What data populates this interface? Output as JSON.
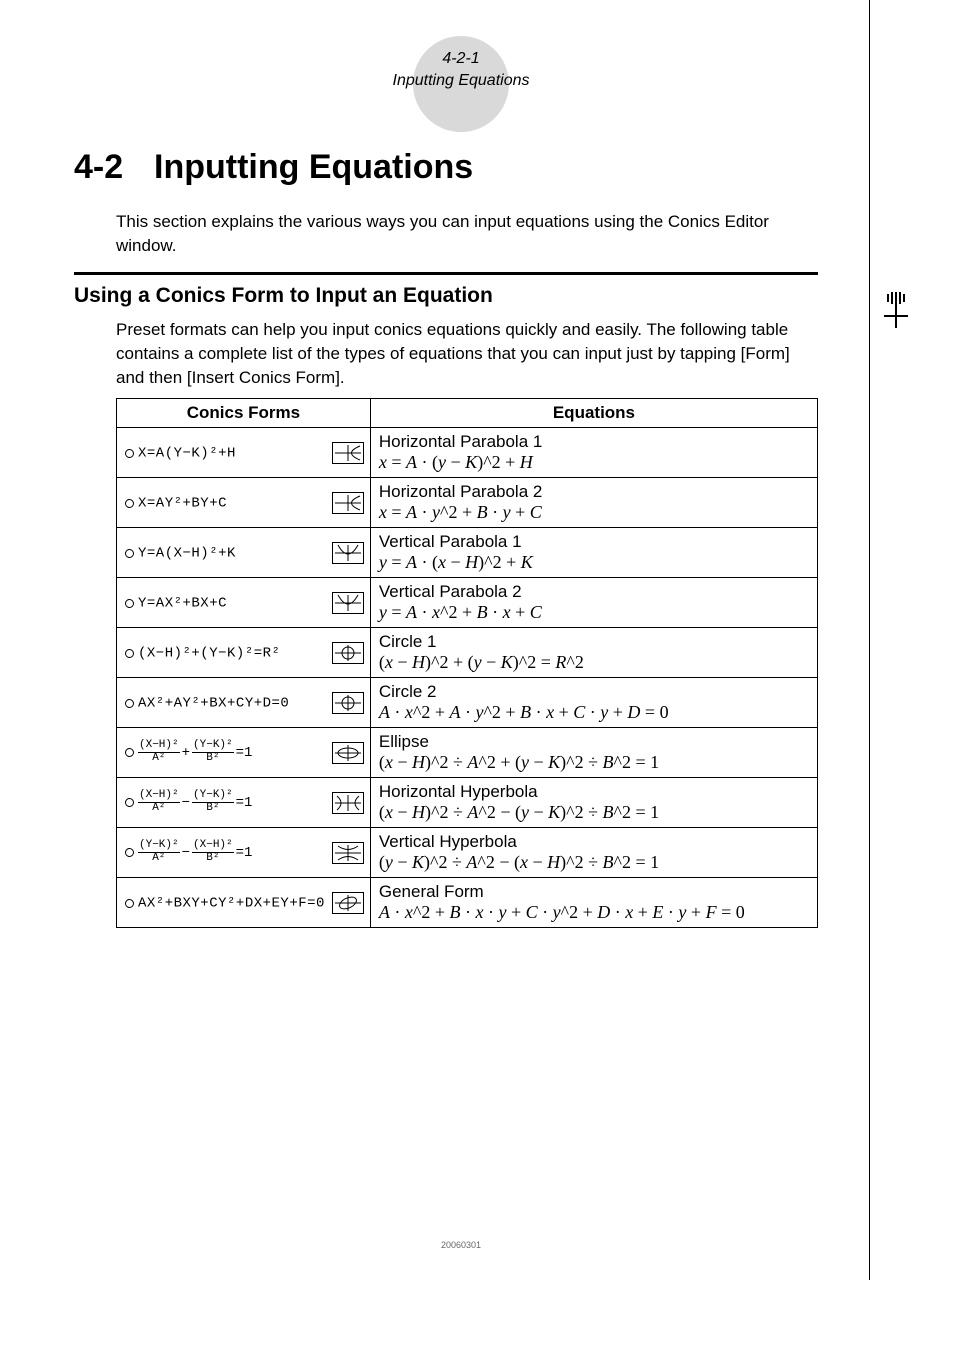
{
  "header": {
    "page_ref": "4-2-1",
    "page_subtitle": "Inputting Equations"
  },
  "section": {
    "number": "4-2",
    "title": "Inputting Equations",
    "intro": "This section explains the various ways you can input equations using the Conics Editor window."
  },
  "subsection": {
    "heading": "Using a Conics Form to Input an Equation",
    "intro": "Preset formats can help you input conics equations quickly and easily. The following table contains a complete list of the types of equations that you can input just by tapping [Form] and then [Insert Conics Form]."
  },
  "table": {
    "col1": "Conics Forms",
    "col2": "Equations",
    "rows": [
      {
        "form_simple": "X=A(Y−K)²+H",
        "name": "Horizontal Parabola 1",
        "eq": "x = A · (y − K)^2 + H",
        "icon": "hpar"
      },
      {
        "form_simple": "X=AY²+BY+C",
        "name": "Horizontal Parabola 2",
        "eq": "x = A · y^2 + B · y + C",
        "icon": "hpar"
      },
      {
        "form_simple": "Y=A(X−H)²+K",
        "name": "Vertical Parabola 1",
        "eq": "y = A · (x − H)^2 + K",
        "icon": "vpar"
      },
      {
        "form_simple": "Y=AX²+BX+C",
        "name": "Vertical Parabola 2",
        "eq": "y = A · x^2 + B · x + C",
        "icon": "vpar"
      },
      {
        "form_simple": "(X−H)²+(Y−K)²=R²",
        "name": "Circle 1",
        "eq": "(x − H)^2 + (y − K)^2 = R^2",
        "icon": "circ"
      },
      {
        "form_simple": "AX²+AY²+BX+CY+D=0",
        "name": "Circle 2",
        "eq": "A · x^2 + A · y^2 + B · x + C · y + D = 0",
        "icon": "circ"
      },
      {
        "form_frac": {
          "n1": "(X−H)²",
          "d1": "A²",
          "op": "+",
          "n2": "(Y−K)²",
          "d2": "B²",
          "rhs": "=1"
        },
        "name": "Ellipse",
        "eq": "(x − H)^2 ÷ A^2 + (y − K)^2 ÷ B^2 = 1",
        "icon": "ellipse"
      },
      {
        "form_frac": {
          "n1": "(X−H)²",
          "d1": "A²",
          "op": "−",
          "n2": "(Y−K)²",
          "d2": "B²",
          "rhs": "=1"
        },
        "name": "Horizontal Hyperbola",
        "eq": "(x − H)^2 ÷ A^2 − (y − K)^2 ÷ B^2 = 1",
        "icon": "hhyp"
      },
      {
        "form_frac": {
          "n1": "(Y−K)²",
          "d1": "A²",
          "op": "−",
          "n2": "(X−H)²",
          "d2": "B²",
          "rhs": "=1"
        },
        "name": "Vertical Hyperbola",
        "eq": "(y − K)^2 ÷ A^2 − (x − H)^2 ÷ B^2 = 1",
        "icon": "vhyp"
      },
      {
        "form_simple": "AX²+BXY+CY²+DX+EY+F=0",
        "name": "General Form",
        "eq": "A · x^2 + B · x · y + C · y^2 + D · x + E · y + F = 0",
        "icon": "gen"
      }
    ]
  },
  "footer": "20060301",
  "colors": {
    "circle_bg": "#d9d9d9",
    "text": "#000000",
    "footer": "#666666"
  }
}
